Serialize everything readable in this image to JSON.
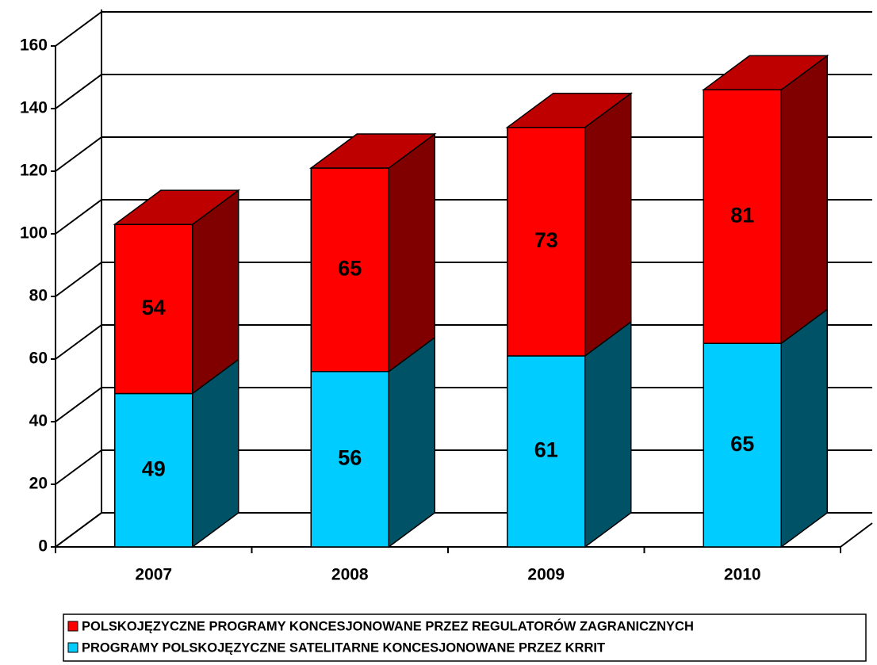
{
  "chart_data": {
    "type": "bar3d_stacked",
    "categories": [
      "2007",
      "2008",
      "2009",
      "2010"
    ],
    "series": [
      {
        "name": "PROGRAMY POLSKOJĘZYCZNE SATELITARNE KONCESJONOWANE PRZEZ KRRIT",
        "color": "#00ccff",
        "values": [
          49,
          56,
          61,
          65
        ]
      },
      {
        "name": "POLSKOJĘZYCZNE PROGRAMY KONCESJONOWANE PRZEZ REGULATORÓW ZAGRANICZNYCH",
        "color": "#ff0000",
        "values": [
          54,
          65,
          73,
          81
        ]
      }
    ],
    "ylim": [
      0,
      160
    ],
    "yticks": [
      0,
      20,
      40,
      60,
      80,
      100,
      120,
      140,
      160
    ],
    "grid": true
  }
}
